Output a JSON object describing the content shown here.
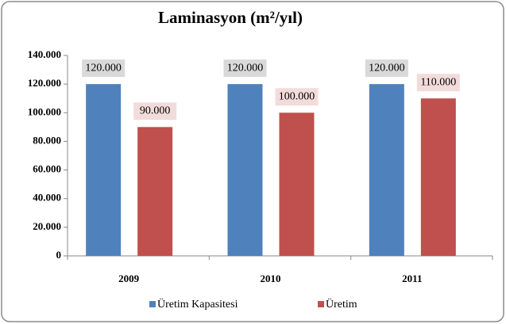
{
  "chart_data": {
    "type": "bar",
    "title": "Laminasyon (m²/yıl)",
    "categories": [
      "2009",
      "2010",
      "2011"
    ],
    "series": [
      {
        "name": "Üretim Kapasitesi",
        "color": "#4f81bd",
        "values": [
          120000,
          120000,
          120000
        ],
        "value_labels": [
          "120.000",
          "120.000",
          "120.000"
        ]
      },
      {
        "name": "Üretim",
        "color": "#c0504d",
        "values": [
          90000,
          100000,
          110000
        ],
        "value_labels": [
          "90.000",
          "100.000",
          "110.000"
        ]
      }
    ],
    "ylim": [
      0,
      140000
    ],
    "yticks": [
      0,
      {
        "value": 20000,
        "label": "20.000"
      },
      {
        "value": 40000,
        "label": "40.000"
      },
      {
        "value": 60000,
        "label": "60.000"
      },
      {
        "value": 80000,
        "label": "80.000"
      },
      {
        "value": 100000,
        "label": "100.000"
      },
      {
        "value": 120000,
        "label": "120.000"
      },
      {
        "value": 140000,
        "label": "140.000"
      }
    ],
    "legend": "bottom"
  }
}
